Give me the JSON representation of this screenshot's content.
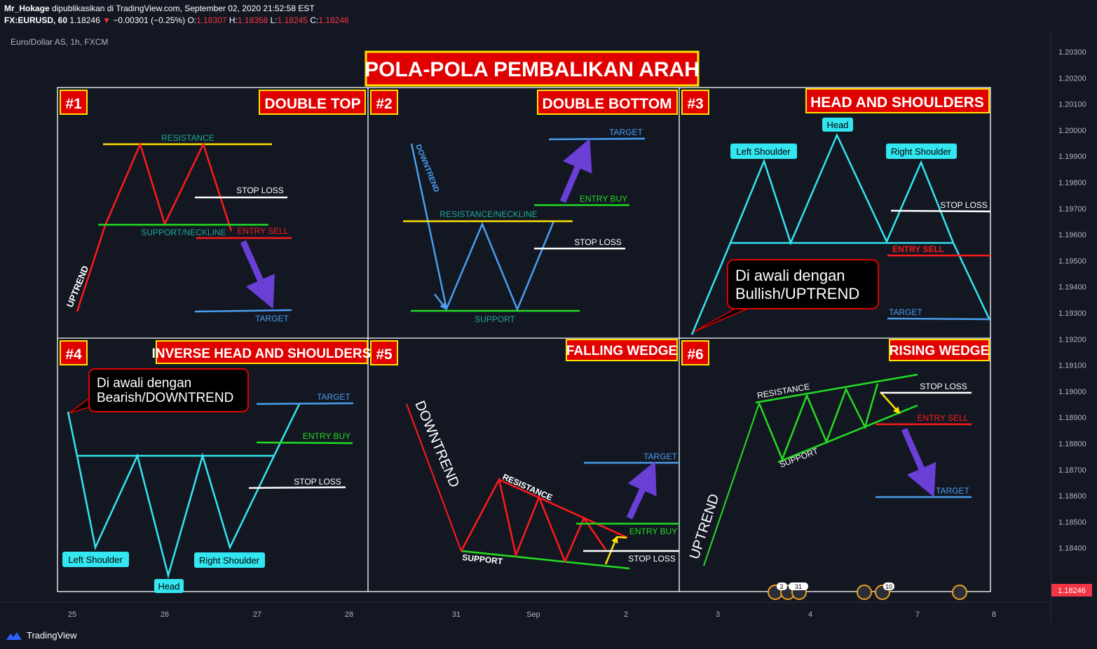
{
  "header": {
    "line1": {
      "user": "Mr_Hokage",
      "published": "dipublikasikan di TradingView.com, September 02, 2020 21:52:58 EST"
    },
    "line2": {
      "symbol": "FX:EURUSD, 60",
      "price": "1.18246",
      "change": "−0.00301 (−0.25%)",
      "o_label": "O:",
      "o": "1.18307",
      "h_label": "H:",
      "h": "1.18358",
      "l_label": "L:",
      "l": "1.18245",
      "c_label": "C:",
      "c": "1.18246"
    }
  },
  "chart_label": "Euro/Dollar AS, 1h, FXCM",
  "main_title": "POLA-POLA PEMBALIKAN ARAH",
  "panels": {
    "p1": {
      "number": "#1",
      "title": "DOUBLE TOP",
      "resistance": "RESISTANCE",
      "stop_loss": "STOP LOSS",
      "neckline": "SUPPORT/NECKLINE",
      "entry": "ENTRY SELL",
      "target": "TARGET",
      "trend": "UPTREND"
    },
    "p2": {
      "number": "#2",
      "title": "DOUBLE BOTTOM",
      "target": "TARGET",
      "entry": "ENTRY BUY",
      "neckline": "RESISTANCE/NECKLINE",
      "stop_loss": "STOP LOSS",
      "support": "SUPPORT",
      "trend": "DOWNTREND"
    },
    "p3": {
      "number": "#3",
      "title": "HEAD AND SHOULDERS",
      "head": "Head",
      "left": "Left Shoulder",
      "right": "Right Shoulder",
      "stop_loss": "STOP LOSS",
      "entry": "ENTRY SELL",
      "target": "TARGET",
      "note1": "Di awali dengan",
      "note2": "Bullish/UPTREND"
    },
    "p4": {
      "number": "#4",
      "title": "INVERSE HEAD AND SHOULDERS",
      "note1": "Di awali dengan",
      "note2": "Bearish/DOWNTREND",
      "target": "TARGET",
      "entry": "ENTRY BUY",
      "stop_loss": "STOP LOSS",
      "left": "Left Shoulder",
      "right": "Right Shoulder",
      "head": "Head"
    },
    "p5": {
      "number": "#5",
      "title": "FALLING WEDGE",
      "trend": "DOWNTREND",
      "resistance": "RESISTANCE",
      "support": "SUPPORT",
      "target": "TARGET",
      "entry": "ENTRY BUY",
      "stop_loss": "STOP LOSS"
    },
    "p6": {
      "number": "#6",
      "title": "RISING WEDGE",
      "resistance": "RESISTANCE",
      "support": "SUPPORT",
      "stop_loss": "STOP LOSS",
      "entry": "ENTRY SELL",
      "target": "TARGET",
      "trend": "UPTREND"
    }
  },
  "chart_data": {
    "type": "line",
    "price_ticks": [
      "1.20300",
      "1.20200",
      "1.20100",
      "1.20000",
      "1.19900",
      "1.19800",
      "1.19700",
      "1.19600",
      "1.19500",
      "1.19400",
      "1.19300",
      "1.19200",
      "1.19100",
      "1.19000",
      "1.18900",
      "1.18800",
      "1.18700",
      "1.18600",
      "1.18500",
      "1.18400"
    ],
    "current_price": "1.18246",
    "time_ticks": [
      "25",
      "26",
      "27",
      "28",
      "31",
      "Sep",
      "2",
      "3",
      "4",
      "7",
      "8"
    ],
    "event_badges": [
      "2",
      "31",
      "10"
    ]
  },
  "colors": {
    "bg": "#131722",
    "red": "#ff1a1a",
    "yellow": "#ffe100",
    "green": "#22dd22",
    "cyan": "#33e6f0",
    "blue": "#4a9ef0",
    "purple": "#6a3fd6",
    "white": "#ffffff"
  },
  "footer": {
    "brand": "TradingView"
  }
}
